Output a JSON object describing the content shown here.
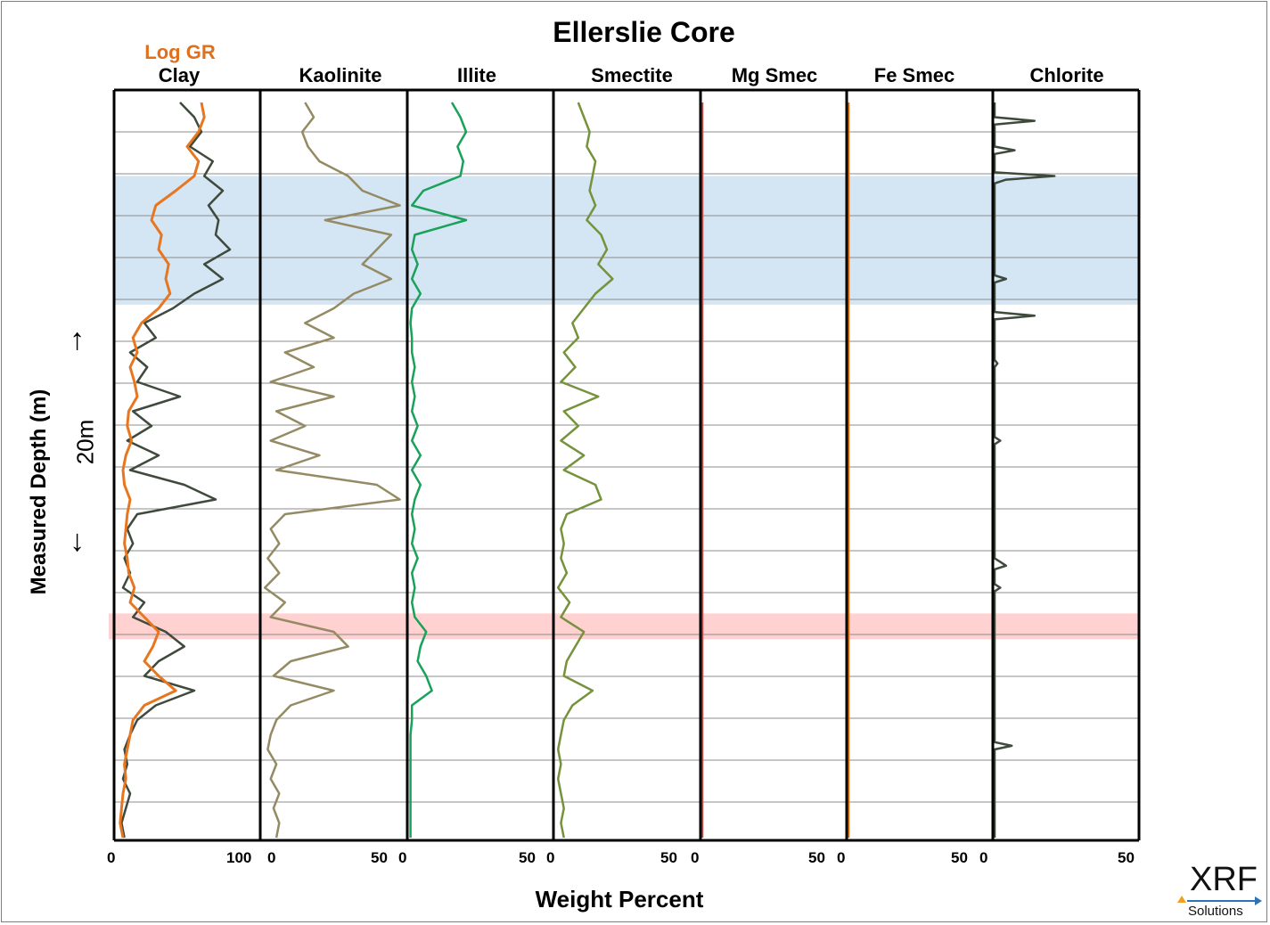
{
  "chart_data": {
    "type": "line",
    "title": "Ellerslie Core",
    "xlabel": "Weight Percent",
    "ylabel": "Measured Depth (m)",
    "depth_scale_label": "20m",
    "depth_axis": "increasing downward",
    "y_ticks_printed": false,
    "grid": true,
    "highlight_bands": [
      {
        "color": "#cfe2f3",
        "depth_from": 0.1,
        "depth_to": 0.275
      },
      {
        "color": "#ffcccc",
        "depth_from": 0.695,
        "depth_to": 0.73
      }
    ],
    "tracks": [
      {
        "name": "Clay",
        "xlim": [
          0,
          100
        ],
        "tick_labels": [
          "0",
          "100"
        ],
        "color": "#3f4a3d",
        "overlay": {
          "name": "Log GR",
          "color": "#e8761e",
          "depth": [
            0.0,
            0.02,
            0.04,
            0.06,
            0.08,
            0.1,
            0.12,
            0.14,
            0.16,
            0.18,
            0.2,
            0.22,
            0.24,
            0.26,
            0.28,
            0.3,
            0.32,
            0.34,
            0.36,
            0.38,
            0.4,
            0.42,
            0.44,
            0.46,
            0.48,
            0.5,
            0.52,
            0.54,
            0.56,
            0.58,
            0.6,
            0.62,
            0.64,
            0.66,
            0.68,
            0.7,
            0.72,
            0.74,
            0.76,
            0.78,
            0.8,
            0.82,
            0.84,
            0.86,
            0.88,
            0.9,
            0.92,
            0.94,
            0.96,
            0.98,
            1.0
          ],
          "values": [
            60,
            62,
            58,
            50,
            58,
            55,
            42,
            28,
            25,
            32,
            30,
            37,
            35,
            38,
            30,
            18,
            12,
            15,
            10,
            13,
            15,
            9,
            8,
            11,
            7,
            5,
            6,
            10,
            8,
            7,
            6,
            8,
            9,
            13,
            10,
            20,
            30,
            26,
            20,
            30,
            42,
            20,
            12,
            10,
            8,
            6,
            7,
            5,
            4,
            3,
            5
          ]
        },
        "depth": [
          0.0,
          0.02,
          0.04,
          0.06,
          0.08,
          0.1,
          0.12,
          0.14,
          0.16,
          0.18,
          0.2,
          0.22,
          0.24,
          0.26,
          0.28,
          0.3,
          0.32,
          0.34,
          0.36,
          0.38,
          0.4,
          0.42,
          0.44,
          0.46,
          0.48,
          0.5,
          0.52,
          0.54,
          0.56,
          0.58,
          0.6,
          0.62,
          0.64,
          0.66,
          0.68,
          0.7,
          0.72,
          0.74,
          0.76,
          0.78,
          0.8,
          0.82,
          0.84,
          0.86,
          0.88,
          0.9,
          0.92,
          0.94,
          0.96,
          0.98,
          1.0
        ],
        "values": [
          45,
          55,
          60,
          52,
          68,
          62,
          75,
          65,
          72,
          70,
          80,
          62,
          75,
          55,
          40,
          20,
          28,
          10,
          22,
          15,
          45,
          12,
          25,
          8,
          30,
          10,
          48,
          70,
          15,
          8,
          12,
          6,
          10,
          5,
          20,
          12,
          35,
          48,
          30,
          20,
          55,
          28,
          15,
          10,
          6,
          8,
          5,
          10,
          7,
          4,
          6
        ]
      },
      {
        "name": "Kaolinite",
        "xlim": [
          0,
          50
        ],
        "tick_labels": [
          "0",
          "50"
        ],
        "color": "#948a63",
        "depth": [
          0.0,
          0.02,
          0.04,
          0.06,
          0.08,
          0.1,
          0.12,
          0.14,
          0.16,
          0.18,
          0.2,
          0.22,
          0.24,
          0.26,
          0.28,
          0.3,
          0.32,
          0.34,
          0.36,
          0.38,
          0.4,
          0.42,
          0.44,
          0.46,
          0.48,
          0.5,
          0.52,
          0.54,
          0.56,
          0.58,
          0.6,
          0.62,
          0.64,
          0.66,
          0.68,
          0.7,
          0.72,
          0.74,
          0.76,
          0.78,
          0.8,
          0.82,
          0.84,
          0.86,
          0.88,
          0.9,
          0.92,
          0.94,
          0.96,
          0.98,
          1.0
        ],
        "values": [
          15,
          18,
          14,
          16,
          20,
          30,
          35,
          48,
          22,
          45,
          40,
          35,
          45,
          32,
          25,
          15,
          25,
          8,
          18,
          3,
          25,
          5,
          15,
          3,
          20,
          5,
          40,
          48,
          8,
          3,
          6,
          2,
          6,
          1,
          8,
          3,
          25,
          30,
          10,
          4,
          25,
          10,
          5,
          3,
          2,
          5,
          3,
          6,
          4,
          6,
          5
        ]
      },
      {
        "name": "Illite",
        "xlim": [
          0,
          50
        ],
        "tick_labels": [
          "0",
          "50"
        ],
        "color": "#1aa15a",
        "depth": [
          0.0,
          0.02,
          0.04,
          0.06,
          0.08,
          0.1,
          0.12,
          0.14,
          0.16,
          0.18,
          0.2,
          0.22,
          0.24,
          0.26,
          0.28,
          0.3,
          0.32,
          0.34,
          0.36,
          0.38,
          0.4,
          0.42,
          0.44,
          0.46,
          0.48,
          0.5,
          0.52,
          0.54,
          0.56,
          0.58,
          0.6,
          0.62,
          0.64,
          0.66,
          0.68,
          0.7,
          0.72,
          0.74,
          0.76,
          0.78,
          0.8,
          0.82,
          0.84,
          0.86,
          0.88,
          0.9,
          0.92,
          0.94,
          0.96,
          0.98,
          1.0
        ],
        "values": [
          15,
          18,
          20,
          17,
          19,
          18,
          5,
          1,
          20,
          2,
          1,
          3,
          1,
          4,
          1,
          0.5,
          1,
          1,
          2,
          1,
          2,
          1,
          3,
          1,
          4,
          1,
          4,
          2,
          1,
          2,
          1,
          3,
          1,
          2,
          1,
          2,
          6,
          4,
          3,
          6,
          8,
          1,
          1,
          0.5,
          0.5,
          0.5,
          0.5,
          0.5,
          0.5,
          0.5,
          0.5
        ]
      },
      {
        "name": "Smectite",
        "xlim": [
          0,
          50
        ],
        "tick_labels": [
          "0",
          "50"
        ],
        "color": "#76923c",
        "depth": [
          0.0,
          0.02,
          0.04,
          0.06,
          0.08,
          0.1,
          0.12,
          0.14,
          0.16,
          0.18,
          0.2,
          0.22,
          0.24,
          0.26,
          0.28,
          0.3,
          0.32,
          0.34,
          0.36,
          0.38,
          0.4,
          0.42,
          0.44,
          0.46,
          0.48,
          0.5,
          0.52,
          0.54,
          0.56,
          0.58,
          0.6,
          0.62,
          0.64,
          0.66,
          0.68,
          0.7,
          0.72,
          0.74,
          0.76,
          0.78,
          0.8,
          0.82,
          0.84,
          0.86,
          0.88,
          0.9,
          0.92,
          0.94,
          0.96,
          0.98,
          1.0
        ],
        "values": [
          8,
          10,
          12,
          11,
          14,
          13,
          12,
          14,
          11,
          16,
          18,
          15,
          20,
          14,
          10,
          6,
          8,
          3,
          7,
          2,
          15,
          3,
          8,
          2,
          10,
          3,
          14,
          16,
          4,
          2,
          3,
          2,
          4,
          1,
          5,
          2,
          10,
          7,
          4,
          3,
          13,
          6,
          3,
          2,
          1,
          2,
          1,
          2,
          3,
          2,
          3
        ]
      },
      {
        "name": "Mg Smec",
        "xlim": [
          0,
          50
        ],
        "tick_labels": [
          "0",
          "50"
        ],
        "color": "#c0504d",
        "depth": [
          0.0,
          1.0
        ],
        "values": [
          0,
          0
        ]
      },
      {
        "name": "Fe Smec",
        "xlim": [
          0,
          50
        ],
        "tick_labels": [
          "0",
          "50"
        ],
        "color": "#e46c0a",
        "depth": [
          0.0,
          1.0
        ],
        "values": [
          0,
          0
        ]
      },
      {
        "name": "Chlorite",
        "xlim": [
          0,
          50
        ],
        "tick_labels": [
          "0",
          "50"
        ],
        "color": "#3f4a3d",
        "depth": [
          0.0,
          0.02,
          0.025,
          0.03,
          0.06,
          0.065,
          0.07,
          0.095,
          0.1,
          0.105,
          0.11,
          0.235,
          0.24,
          0.245,
          0.285,
          0.29,
          0.295,
          0.35,
          0.355,
          0.36,
          0.455,
          0.46,
          0.465,
          0.62,
          0.625,
          0.63,
          0.635,
          0.655,
          0.66,
          0.665,
          0.87,
          0.875,
          0.88,
          1.0
        ],
        "values": [
          0,
          0,
          14,
          0,
          0,
          7,
          0,
          0,
          21,
          4,
          0,
          0,
          4,
          0,
          0,
          14,
          0,
          0,
          1,
          0,
          0,
          2,
          0,
          0,
          2,
          4,
          0,
          0,
          2,
          0,
          0,
          6,
          0,
          0
        ]
      }
    ]
  },
  "logo": {
    "text": "XRF",
    "subtext": "Solutions"
  }
}
